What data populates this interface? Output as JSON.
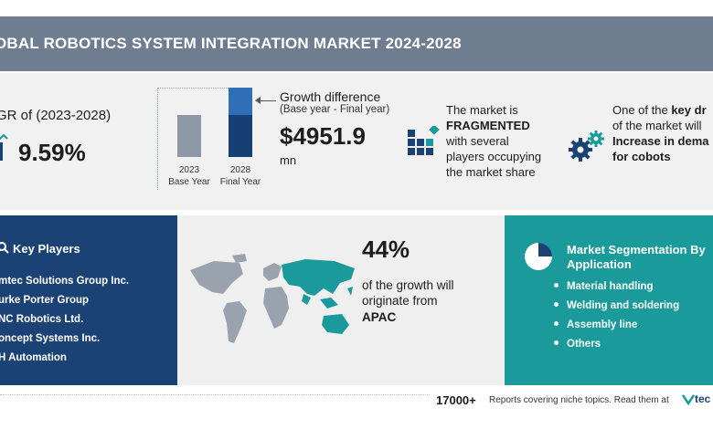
{
  "header": {
    "title": "OBAL ROBOTICS SYSTEM INTEGRATION MARKET 2024-2028"
  },
  "cagr": {
    "label": "GR of (2023-2028)",
    "value": "9.59%"
  },
  "bars": {
    "year_2023": "2023",
    "caption_2023": "Base Year",
    "year_2028": "2028",
    "caption_2028": "Final Year"
  },
  "growth": {
    "title": "Growth difference",
    "subtitle": "(Base year - Final year)",
    "value": "$4951.9",
    "unit": "mn"
  },
  "market": {
    "line1": "The market is",
    "line2": "FRAGMENTED",
    "line3": "with several",
    "line4": "players occupying",
    "line5": "the market share"
  },
  "driver": {
    "line1_pre": "One of the ",
    "line1_bold": "key dr",
    "line2": "of the market will",
    "line3": "Increase in dema",
    "line4": "for cobots"
  },
  "players": {
    "title": "Key Players",
    "items": [
      "mtec Solutions Group Inc.",
      "urke Porter Group",
      "NC Robotics Ltd.",
      "oncept Systems Inc.",
      "H Automation"
    ]
  },
  "map": {
    "percent": "44%",
    "text": "of the growth will originate from",
    "region": "APAC"
  },
  "segmentation": {
    "title_line1": "Market Segmentation By",
    "title_line2": "Application",
    "items": [
      "Material handling",
      "Welding and soldering",
      "Assembly line",
      "Others"
    ]
  },
  "footer": {
    "count": "17000+",
    "text": "Reports covering niche topics. Read them at",
    "logo": "tec"
  },
  "colors": {
    "header_bg": "#6e7d8f",
    "players_bg": "#1b4274",
    "segment_bg": "#1a9a9a",
    "apac_highlight": "#1a9a9a",
    "bar_2023": "#8c98a6",
    "bar_2028_increment": "#2f6fb5",
    "bar_2028_base": "#163f73"
  }
}
